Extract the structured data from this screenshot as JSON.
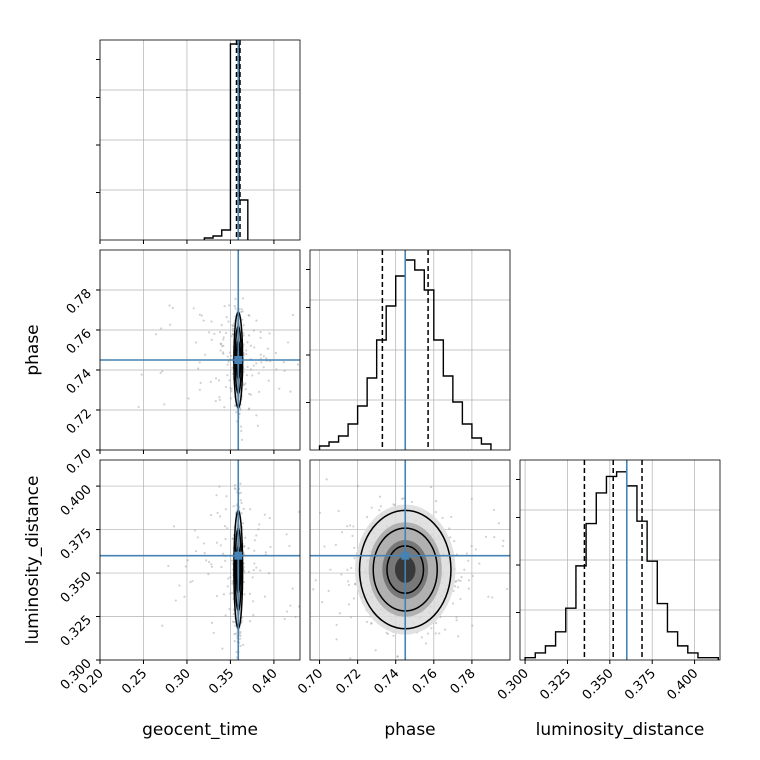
{
  "colors": {
    "truth": "#4682b4",
    "line": "#000000",
    "grid": "#b0b0b0",
    "scatter": "#9a9a9a"
  },
  "chart_data": [
    {
      "type": "histogram",
      "panel": "geocent_time",
      "xlabel": "geocent_time",
      "xlim": [
        0.2,
        0.43
      ],
      "xticks": [
        "0.20",
        "0.25",
        "0.30",
        "0.35",
        "0.40"
      ],
      "grid": true,
      "bins": [
        0.32,
        0.33,
        0.34,
        0.35,
        0.36,
        0.37
      ],
      "counts": [
        0.01,
        0.02,
        0.05,
        0.98,
        0.2
      ],
      "ymax": 1.0,
      "quantiles": [
        0.357,
        0.359,
        0.361
      ],
      "truth": 0.359
    },
    {
      "type": "scatter",
      "panel": "geocent_time vs phase",
      "xlim": [
        0.2,
        0.43
      ],
      "ylim": [
        0.7,
        0.8
      ],
      "ylabel": "phase",
      "yticks": [
        "0.70",
        "0.72",
        "0.74",
        "0.76",
        "0.78"
      ],
      "grid": true,
      "center": [
        0.359,
        0.745
      ],
      "spread": [
        0.0025,
        0.012
      ],
      "contour_levels": 3,
      "truth": [
        0.359,
        0.745
      ]
    },
    {
      "type": "histogram",
      "panel": "phase",
      "xlim": [
        0.695,
        0.8
      ],
      "grid": true,
      "bins": [
        0.7,
        0.705,
        0.71,
        0.715,
        0.72,
        0.725,
        0.73,
        0.735,
        0.74,
        0.745,
        0.75,
        0.755,
        0.76,
        0.765,
        0.77,
        0.775,
        0.78,
        0.785,
        0.79
      ],
      "counts": [
        0.02,
        0.04,
        0.07,
        0.13,
        0.22,
        0.36,
        0.55,
        0.72,
        0.87,
        0.95,
        0.9,
        0.8,
        0.55,
        0.37,
        0.24,
        0.13,
        0.06,
        0.03
      ],
      "ymax": 1.0,
      "quantiles": [
        0.733,
        0.745,
        0.757
      ],
      "truth": 0.745
    },
    {
      "type": "scatter",
      "panel": "geocent_time vs luminosity_distance",
      "xlim": [
        0.2,
        0.43
      ],
      "ylim": [
        0.3,
        0.415
      ],
      "xlabel": "geocent_time",
      "ylabel": "luminosity_distance",
      "xticks": [
        "0.20",
        "0.25",
        "0.30",
        "0.35",
        "0.40"
      ],
      "yticks": [
        "0.300",
        "0.325",
        "0.350",
        "0.375",
        "0.400"
      ],
      "grid": true,
      "center": [
        0.359,
        0.352
      ],
      "spread": [
        0.0025,
        0.017
      ],
      "contour_levels": 3,
      "truth": [
        0.359,
        0.36
      ]
    },
    {
      "type": "scatter",
      "panel": "phase vs luminosity_distance",
      "xlim": [
        0.695,
        0.8
      ],
      "ylim": [
        0.3,
        0.415
      ],
      "xlabel": "phase",
      "xticks": [
        "0.70",
        "0.72",
        "0.74",
        "0.76",
        "0.78"
      ],
      "grid": true,
      "center": [
        0.745,
        0.352
      ],
      "spread": [
        0.012,
        0.017
      ],
      "contour_levels": 3,
      "truth": [
        0.745,
        0.36
      ]
    },
    {
      "type": "histogram",
      "panel": "luminosity_distance",
      "xlim": [
        0.297,
        0.415
      ],
      "xlabel": "luminosity_distance",
      "xticks": [
        "0.300",
        "0.325",
        "0.350",
        "0.375",
        "0.400"
      ],
      "grid": true,
      "bins": [
        0.3,
        0.306,
        0.312,
        0.318,
        0.324,
        0.33,
        0.336,
        0.342,
        0.348,
        0.354,
        0.36,
        0.366,
        0.372,
        0.378,
        0.384,
        0.39,
        0.396,
        0.402,
        0.408,
        0.414
      ],
      "counts": [
        0.01,
        0.03,
        0.06,
        0.12,
        0.22,
        0.4,
        0.58,
        0.71,
        0.78,
        0.8,
        0.74,
        0.59,
        0.42,
        0.24,
        0.12,
        0.06,
        0.03,
        0.01,
        0.01
      ],
      "ymax": 0.85,
      "quantiles": [
        0.335,
        0.352,
        0.369
      ],
      "truth": 0.36
    }
  ]
}
